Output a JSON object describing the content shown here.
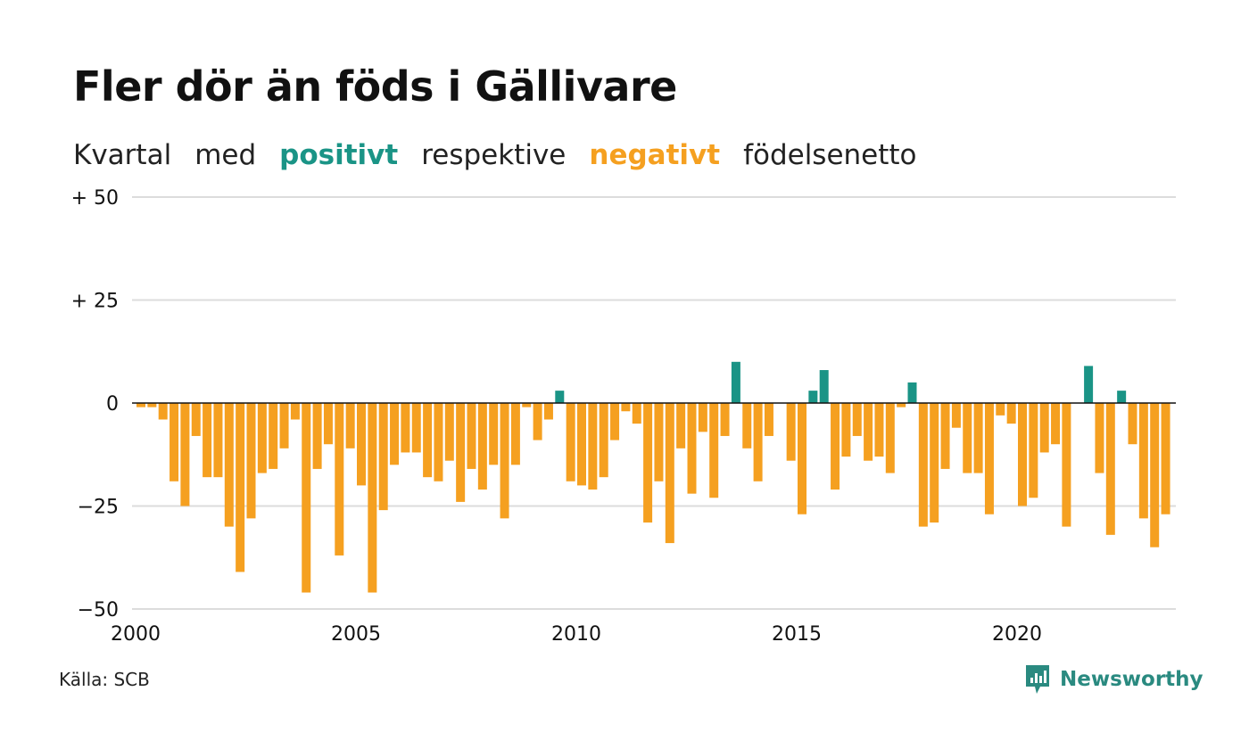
{
  "title": "Fler dör än föds i Gällivare",
  "subtitle": {
    "part1": "Kvartal",
    "part2": "med",
    "positive_word": "positivt",
    "part3": "respektive",
    "negative_word": "negativt",
    "part4": "födelsenetto"
  },
  "source": "Källa: SCB",
  "brand": {
    "name": "Newsworthy",
    "icon": "newsworthy-logo-icon"
  },
  "colors": {
    "positive": "#1a9486",
    "negative": "#f5a020",
    "grid": "#dcdcdc",
    "zero_line": "#111111"
  },
  "chart_data": {
    "type": "bar",
    "title": "Fler dör än föds i Gällivare",
    "start_year": 2000,
    "frequency": "quarterly",
    "x_ticks": [
      "2000",
      "2005",
      "2010",
      "2015",
      "2020"
    ],
    "y_ticks": [
      {
        "value": 50,
        "label": "+ 50"
      },
      {
        "value": 25,
        "label": "+ 25"
      },
      {
        "value": 0,
        "label": "0"
      },
      {
        "value": -25,
        "label": "−25"
      },
      {
        "value": -50,
        "label": "−50"
      }
    ],
    "ylim": [
      -50,
      50
    ],
    "grid": true,
    "values": [
      -1,
      -1,
      -4,
      -19,
      -25,
      -8,
      -18,
      -18,
      -30,
      -41,
      -28,
      -17,
      -16,
      -11,
      -4,
      -46,
      -16,
      -10,
      -37,
      -11,
      -20,
      -46,
      -26,
      -15,
      -12,
      -12,
      -18,
      -19,
      -14,
      -24,
      -16,
      -21,
      -15,
      -28,
      -15,
      -1,
      -9,
      -4,
      3,
      -19,
      -20,
      -21,
      -18,
      -9,
      -2,
      -5,
      -29,
      -19,
      -34,
      -11,
      -22,
      -7,
      -23,
      -8,
      10,
      -11,
      -19,
      -8,
      0,
      -14,
      -27,
      3,
      8,
      -21,
      -13,
      -8,
      -14,
      -13,
      -17,
      -1,
      5,
      -30,
      -29,
      -16,
      -6,
      -17,
      -17,
      -27,
      -3,
      -5,
      -25,
      -23,
      -12,
      -10,
      -30,
      0,
      9,
      -17,
      -32,
      3,
      -10,
      -28,
      -35,
      -27
    ]
  }
}
